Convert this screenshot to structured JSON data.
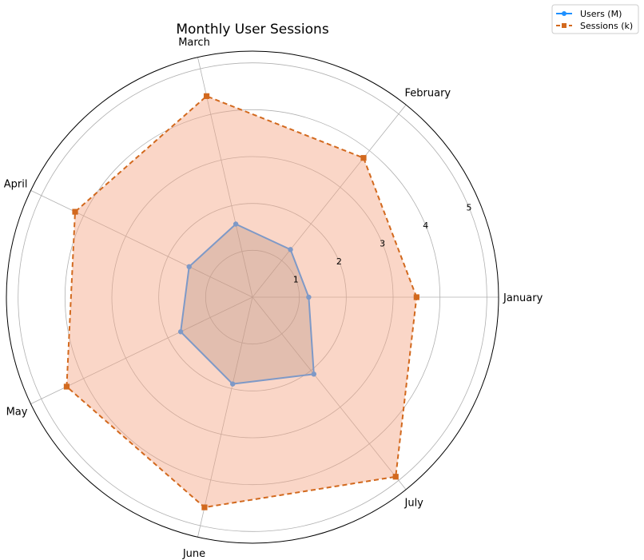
{
  "chart_data": {
    "type": "radar",
    "title": "Monthly User Sessions",
    "categories": [
      "January",
      "February",
      "March",
      "April",
      "May",
      "June",
      "July"
    ],
    "radial_ticks": [
      "1",
      "2",
      "3",
      "4",
      "5"
    ],
    "rlim": [
      0,
      5.25
    ],
    "grid": true,
    "legend_position": "top-right outside",
    "series": [
      {
        "name": "Users (M)",
        "values": [
          1.2,
          1.3,
          1.6,
          1.5,
          1.7,
          1.9,
          2.1
        ],
        "color": "#1e90ff",
        "line_style": "solid",
        "marker": "circle",
        "fill": "#808080"
      },
      {
        "name": "Sessions (k)",
        "values": [
          3.5,
          3.8,
          4.4,
          4.2,
          4.4,
          4.6,
          4.9
        ],
        "color": "#d2691e",
        "line_style": "dashed",
        "marker": "square",
        "fill": "#f4a582"
      }
    ]
  }
}
